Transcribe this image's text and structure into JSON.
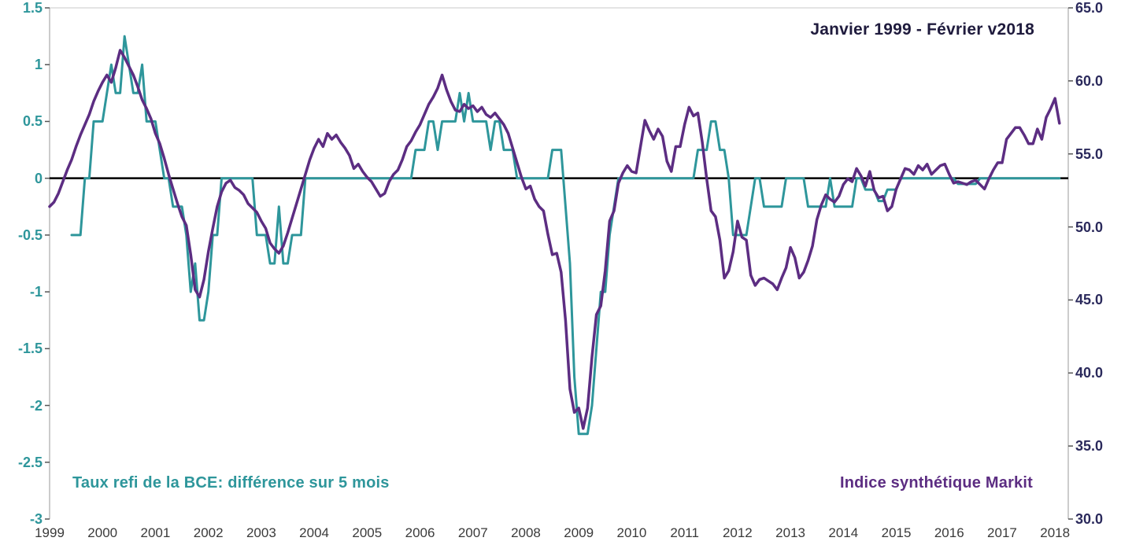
{
  "title": "Janvier 1999 - Février v2018",
  "labels": {
    "left_series": "Taux refi de la BCE: différence sur 5 mois",
    "right_series": "Indice synthétique Markit"
  },
  "colors": {
    "teal_series": "#2E969B",
    "purple_series": "#5C2D82",
    "title_text": "#1F1B3D",
    "right_axis_text": "#2B2A5C",
    "x_axis_text": "#3a3a3a",
    "zero_line": "#000000",
    "axis_line": "#9a9a9a"
  },
  "chart_data": {
    "type": "line",
    "title": "Janvier 1999 - Février v2018",
    "x_start": {
      "year": 1999,
      "month": 1
    },
    "x_end": {
      "year": 2018,
      "month": 2
    },
    "x_tick_labels": [
      "1999",
      "2000",
      "2001",
      "2002",
      "2003",
      "2004",
      "2005",
      "2006",
      "2007",
      "2008",
      "2009",
      "2010",
      "2011",
      "2012",
      "2013",
      "2014",
      "2015",
      "2016",
      "2017",
      "2018"
    ],
    "left_axis": {
      "min": -3,
      "max": 1.5,
      "ticks": [
        "1.5",
        "1",
        "0.5",
        "0",
        "-0.5",
        "-1",
        "-1.5",
        "-2",
        "-2.5",
        "-3"
      ]
    },
    "right_axis": {
      "min": 30,
      "max": 65,
      "ticks": [
        "65.0",
        "60.0",
        "55.0",
        "50.0",
        "45.0",
        "40.0",
        "35.0",
        "30.0"
      ]
    },
    "grid": false,
    "zero_line_left_value": 0,
    "series": [
      {
        "name": "Taux refi de la BCE: différence sur 5 mois",
        "axis": "left",
        "color": "#2E969B",
        "values": [
          null,
          null,
          null,
          null,
          null,
          -0.5,
          -0.5,
          -0.5,
          0,
          0,
          0.5,
          0.5,
          0.5,
          0.75,
          1,
          0.75,
          0.75,
          1.25,
          1,
          0.75,
          0.75,
          1,
          0.5,
          0.5,
          0.5,
          0.25,
          0,
          0,
          -0.25,
          -0.25,
          -0.25,
          -0.5,
          -1,
          -0.75,
          -1.25,
          -1.25,
          -1,
          -0.5,
          -0.5,
          0,
          0,
          0,
          0,
          0,
          0,
          0,
          0,
          -0.5,
          -0.5,
          -0.5,
          -0.75,
          -0.75,
          -0.25,
          -0.75,
          -0.75,
          -0.5,
          -0.5,
          -0.5,
          0,
          0,
          0,
          0,
          0,
          0,
          0,
          0,
          0,
          0,
          0,
          0,
          0,
          0,
          0,
          0,
          0,
          0,
          0,
          0,
          0,
          0,
          0,
          0,
          0,
          0.25,
          0.25,
          0.25,
          0.5,
          0.5,
          0.25,
          0.5,
          0.5,
          0.5,
          0.5,
          0.75,
          0.5,
          0.75,
          0.5,
          0.5,
          0.5,
          0.5,
          0.25,
          0.5,
          0.5,
          0.25,
          0.25,
          0.25,
          0,
          0,
          0,
          0,
          0,
          0,
          0,
          0,
          0.25,
          0.25,
          0.25,
          -0.25,
          -0.75,
          -1.75,
          -2.25,
          -2.25,
          -2.25,
          -2,
          -1.5,
          -1,
          -1,
          -0.5,
          -0.25,
          0,
          0,
          0,
          0,
          0,
          0,
          0,
          0,
          0,
          0,
          0,
          0,
          0,
          0,
          0,
          0,
          0,
          0,
          0.25,
          0.25,
          0.25,
          0.5,
          0.5,
          0.25,
          0.25,
          0,
          -0.5,
          -0.5,
          -0.5,
          -0.5,
          -0.25,
          0,
          0,
          -0.25,
          -0.25,
          -0.25,
          -0.25,
          -0.25,
          0,
          0,
          0,
          0,
          0,
          -0.25,
          -0.25,
          -0.25,
          -0.25,
          -0.25,
          0,
          -0.25,
          -0.25,
          -0.25,
          -0.25,
          -0.25,
          0,
          0,
          -0.1,
          -0.1,
          -0.1,
          -0.2,
          -0.2,
          -0.1,
          -0.1,
          -0.1,
          0,
          0,
          0,
          0,
          0,
          0,
          0,
          0,
          0,
          0,
          0,
          0,
          0,
          -0.05,
          -0.05,
          -0.05,
          -0.05,
          -0.05,
          0,
          0,
          0,
          0,
          0,
          0,
          0,
          0,
          0,
          0,
          0,
          0,
          0,
          0,
          0,
          0,
          0,
          0,
          0
        ]
      },
      {
        "name": "Indice synthétique Markit",
        "axis": "right",
        "color": "#5C2D82",
        "values": [
          51.4,
          51.7,
          52.3,
          53.1,
          53.9,
          54.6,
          55.5,
          56.3,
          57.0,
          57.7,
          58.6,
          59.3,
          59.9,
          60.4,
          59.9,
          60.9,
          62.1,
          61.6,
          61.0,
          60.4,
          59.6,
          58.7,
          58.1,
          57.4,
          56.4,
          55.7,
          54.7,
          53.6,
          52.6,
          51.6,
          50.7,
          50.1,
          48.1,
          45.7,
          45.2,
          46.4,
          48.3,
          49.9,
          51.4,
          52.4,
          53.0,
          53.2,
          52.7,
          52.5,
          52.2,
          51.6,
          51.3,
          51.0,
          50.4,
          49.9,
          48.9,
          48.5,
          48.2,
          48.7,
          49.6,
          50.6,
          51.6,
          52.6,
          53.6,
          54.6,
          55.4,
          56.0,
          55.5,
          56.4,
          56.0,
          56.3,
          55.8,
          55.4,
          54.9,
          54.0,
          54.3,
          53.8,
          53.4,
          53.1,
          52.6,
          52.1,
          52.3,
          53.1,
          53.6,
          53.9,
          54.6,
          55.5,
          55.9,
          56.5,
          57.0,
          57.7,
          58.4,
          58.9,
          59.5,
          60.4,
          59.4,
          58.6,
          58.0,
          57.9,
          58.4,
          58.1,
          58.3,
          57.9,
          58.2,
          57.7,
          57.5,
          57.8,
          57.4,
          57.0,
          56.4,
          55.4,
          54.4,
          53.4,
          52.6,
          52.8,
          51.9,
          51.4,
          51.1,
          49.5,
          48.1,
          48.2,
          46.9,
          43.6,
          38.9,
          37.3,
          37.6,
          36.2,
          37.6,
          41.1,
          44.0,
          44.6,
          47.0,
          50.4,
          51.1,
          53.0,
          53.7,
          54.2,
          53.8,
          53.7,
          55.5,
          57.3,
          56.6,
          56.0,
          56.7,
          56.2,
          54.5,
          53.8,
          55.5,
          55.5,
          57.0,
          58.2,
          57.6,
          57.8,
          55.8,
          53.3,
          51.1,
          50.7,
          49.1,
          46.5,
          47.0,
          48.3,
          50.4,
          49.3,
          49.1,
          46.7,
          46.0,
          46.4,
          46.5,
          46.3,
          46.1,
          45.7,
          46.5,
          47.2,
          48.6,
          47.9,
          46.5,
          46.9,
          47.7,
          48.7,
          50.5,
          51.5,
          52.2,
          51.9,
          51.7,
          52.1,
          52.9,
          53.3,
          53.1,
          54.0,
          53.5,
          52.8,
          53.8,
          52.5,
          52.0,
          52.1,
          51.1,
          51.4,
          52.6,
          53.3,
          54.0,
          53.9,
          53.6,
          54.2,
          53.9,
          54.3,
          53.6,
          53.9,
          54.2,
          54.3,
          53.6,
          53.0,
          53.1,
          53.0,
          52.9,
          53.1,
          53.2,
          52.9,
          52.6,
          53.3,
          53.9,
          54.4,
          54.4,
          56.0,
          56.4,
          56.8,
          56.8,
          56.3,
          55.7,
          55.7,
          56.7,
          56.0,
          57.5,
          58.1,
          58.8,
          57.1
        ]
      }
    ]
  }
}
